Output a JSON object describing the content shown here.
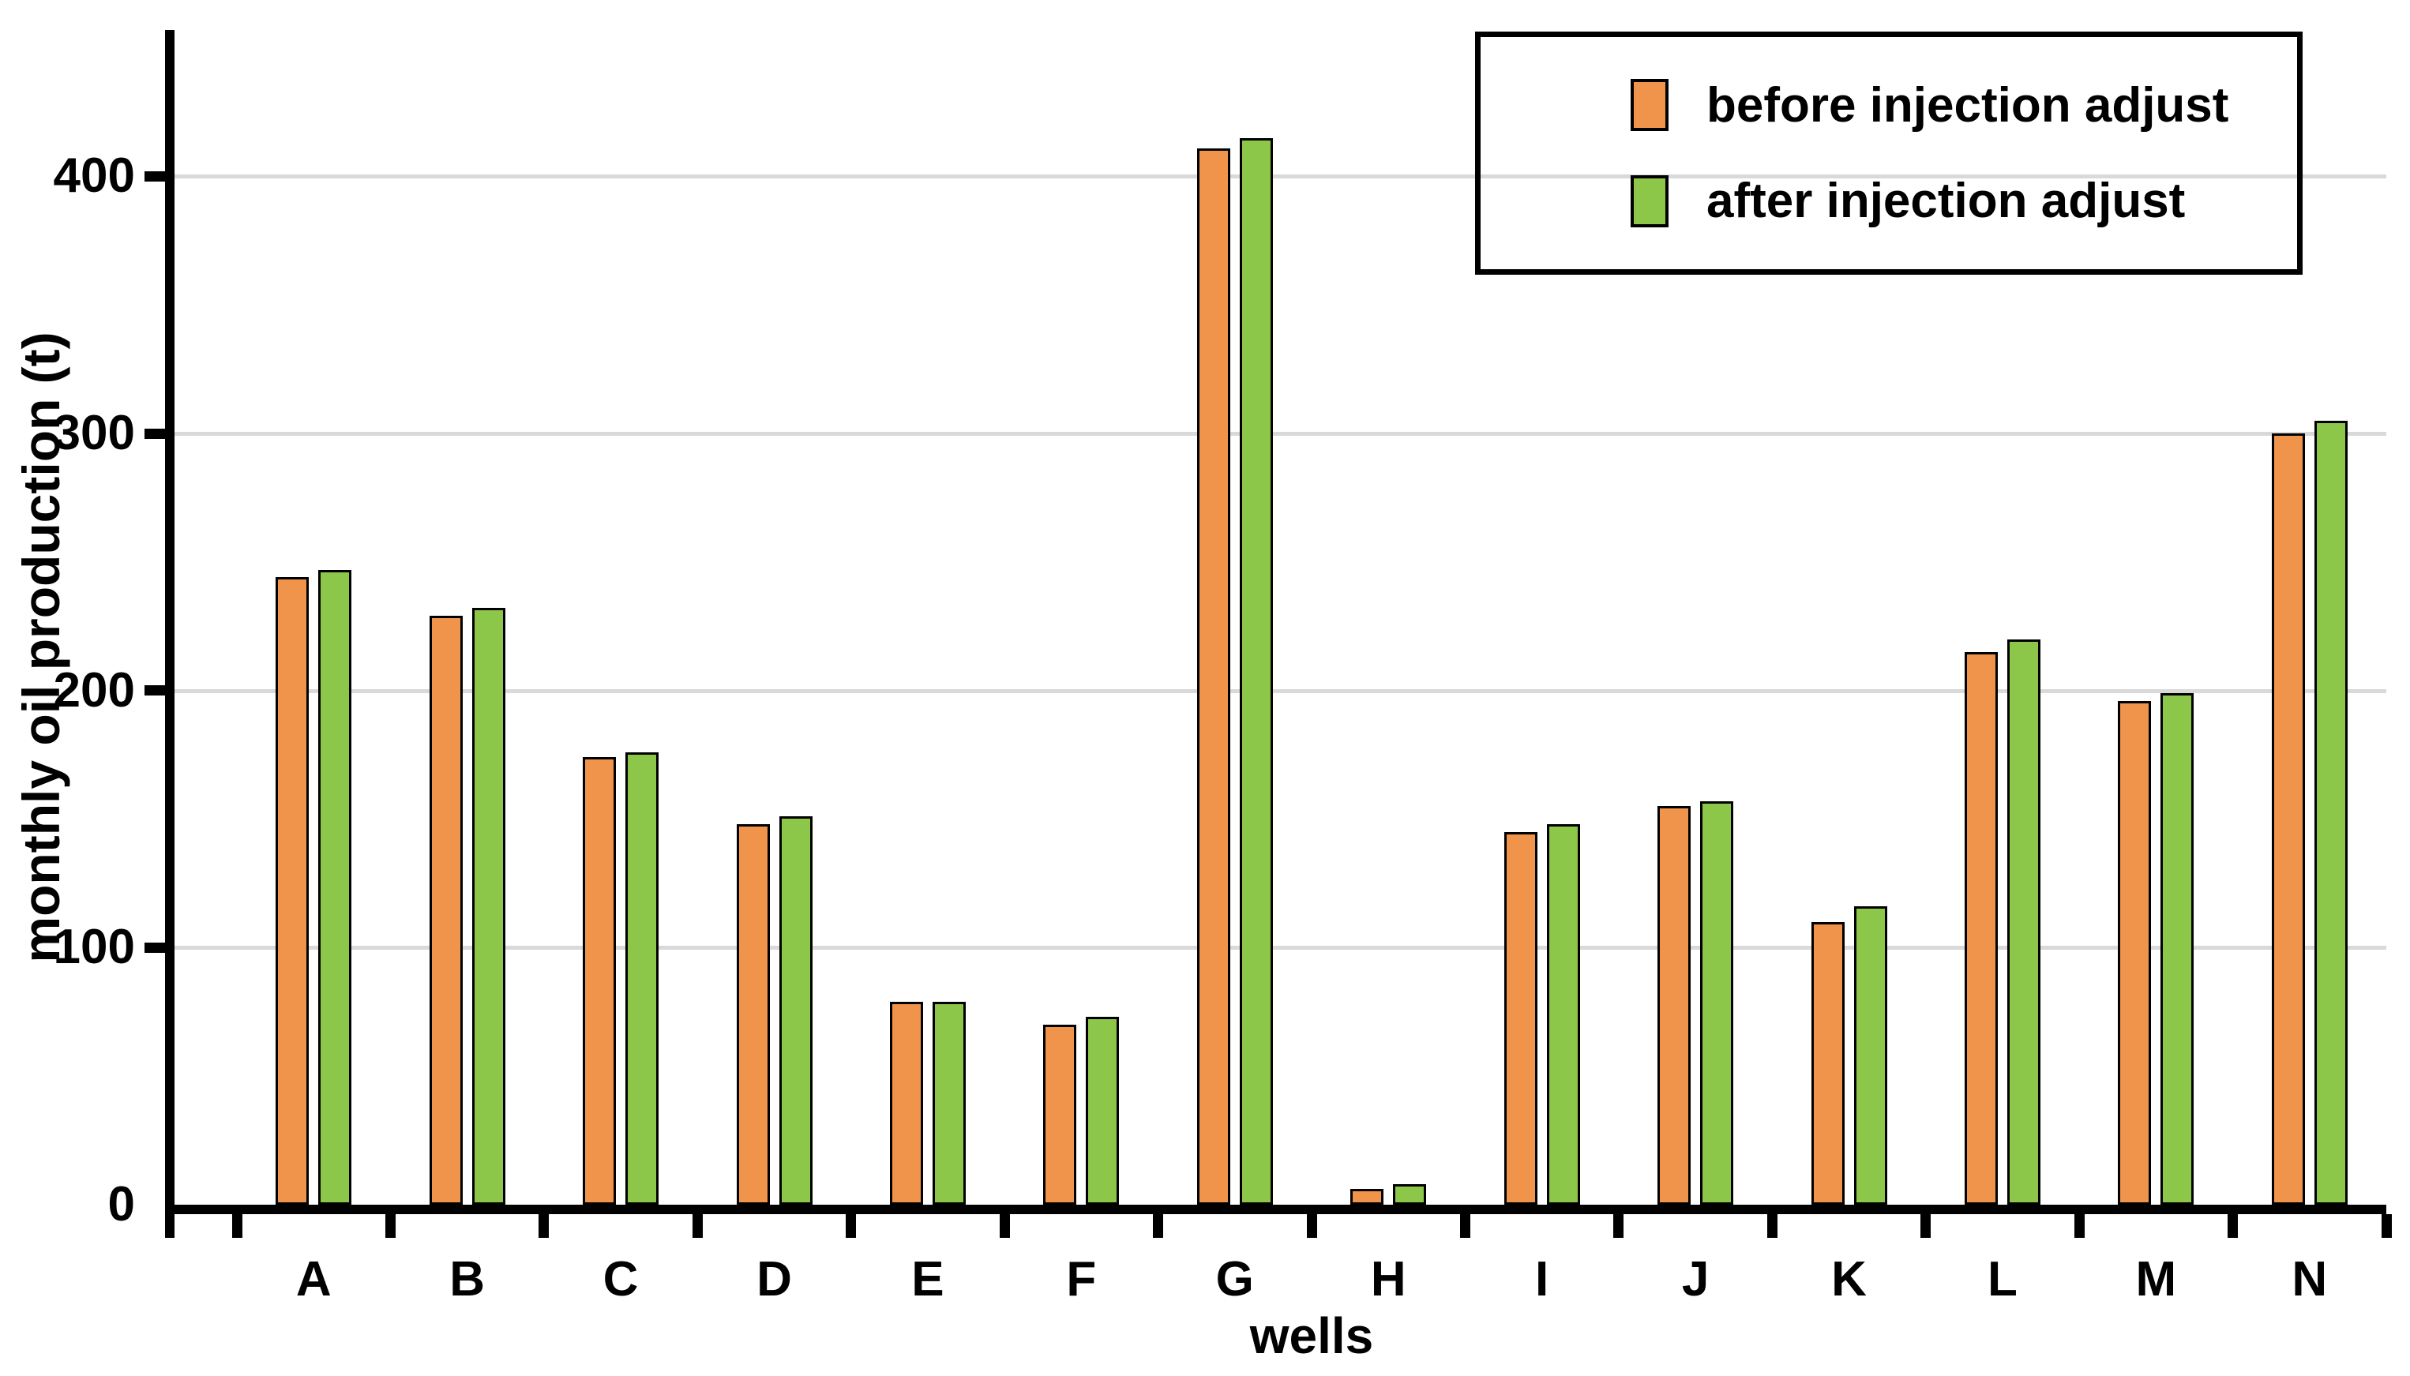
{
  "chart_data": {
    "type": "bar",
    "title": "",
    "xlabel": "wells",
    "ylabel": "monthly oil production (t)",
    "categories": [
      "A",
      "B",
      "C",
      "D",
      "E",
      "F",
      "G",
      "H",
      "I",
      "J",
      "K",
      "L",
      "M",
      "N"
    ],
    "series": [
      {
        "name": "before injection adjust",
        "color": "#F0934B",
        "values": [
          244,
          229,
          174,
          148,
          79,
          70,
          411,
          6,
          145,
          155,
          110,
          215,
          196,
          300
        ]
      },
      {
        "name": "after injection adjust",
        "color": "#8DC74A",
        "values": [
          247,
          232,
          176,
          151,
          79,
          73,
          415,
          8,
          148,
          157,
          116,
          220,
          199,
          305
        ]
      }
    ],
    "y_ticks": [
      0,
      100,
      200,
      300,
      400
    ],
    "ylim": [
      0,
      457
    ],
    "grid": "horizontal",
    "legend_position": "top-right"
  },
  "colors": {
    "background": "#FFFFFF",
    "grid": "#D9D9D9",
    "axis": "#000000",
    "bar_border": "#000000",
    "legend_border": "#000000",
    "text": "#000000"
  }
}
